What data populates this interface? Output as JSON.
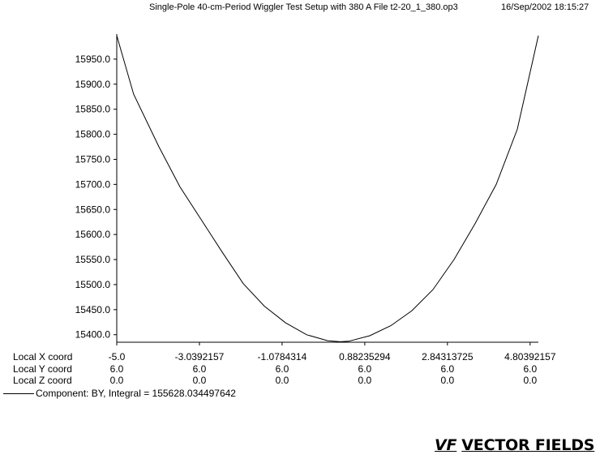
{
  "header": {
    "title": "Single-Pole 40-cm-Period Wiggler Test Setup with 380 A  File t2-20_1_380.op3",
    "timestamp": "16/Sep/2002 18:15:27"
  },
  "chart_data": {
    "type": "line",
    "title": "Single-Pole 40-cm-Period Wiggler Test Setup with 380 A  File t2-20_1_380.op3",
    "xlabel": "",
    "ylabel": "",
    "xlim": [
      -5.0,
      5.0
    ],
    "ylim": [
      15385.0,
      16000.0
    ],
    "grid": false,
    "y_ticks": [
      15400.0,
      15450.0,
      15500.0,
      15550.0,
      15600.0,
      15650.0,
      15700.0,
      15750.0,
      15800.0,
      15850.0,
      15900.0,
      15950.0
    ],
    "y_tick_labels": [
      "15400.0",
      "15450.0",
      "15500.0",
      "15550.0",
      "15600.0",
      "15650.0",
      "15700.0",
      "15750.0",
      "15800.0",
      "15850.0",
      "15900.0",
      "15950.0"
    ],
    "x_ticks": [
      -5.0,
      -3.0392157,
      -1.0784314,
      0.88235294,
      2.84313725,
      4.80392157
    ],
    "series": [
      {
        "name": "BY",
        "x": [
          -5.0,
          -4.6,
          -4.0,
          -3.5,
          -3.0,
          -2.5,
          -2.0,
          -1.5,
          -1.0,
          -0.5,
          0.0,
          0.3,
          0.5,
          1.0,
          1.5,
          2.0,
          2.5,
          3.0,
          3.5,
          4.0,
          4.5,
          5.0
        ],
        "y": [
          15997,
          15880,
          15775,
          15695,
          15630,
          15565,
          15502,
          15457,
          15424,
          15400,
          15388,
          15386,
          15387,
          15398,
          15418,
          15448,
          15490,
          15550,
          15622,
          15700,
          15810,
          15997
        ]
      }
    ]
  },
  "coords": {
    "rows": [
      {
        "label": "Local X coord",
        "values": [
          "-5.0",
          "-3.0392157",
          "-1.0784314",
          "0.88235294",
          "2.84313725",
          "4.80392157"
        ]
      },
      {
        "label": "Local Y coord",
        "values": [
          "6.0",
          "6.0",
          "6.0",
          "6.0",
          "6.0",
          "6.0"
        ]
      },
      {
        "label": "Local Z coord",
        "values": [
          "0.0",
          "0.0",
          "0.0",
          "0.0",
          "0.0",
          "0.0"
        ]
      }
    ]
  },
  "legend": {
    "text": "Component:   BY, Integral = 155628.034497642"
  },
  "logo": {
    "mark": "VF",
    "text": "VECTOR FIELDS"
  }
}
